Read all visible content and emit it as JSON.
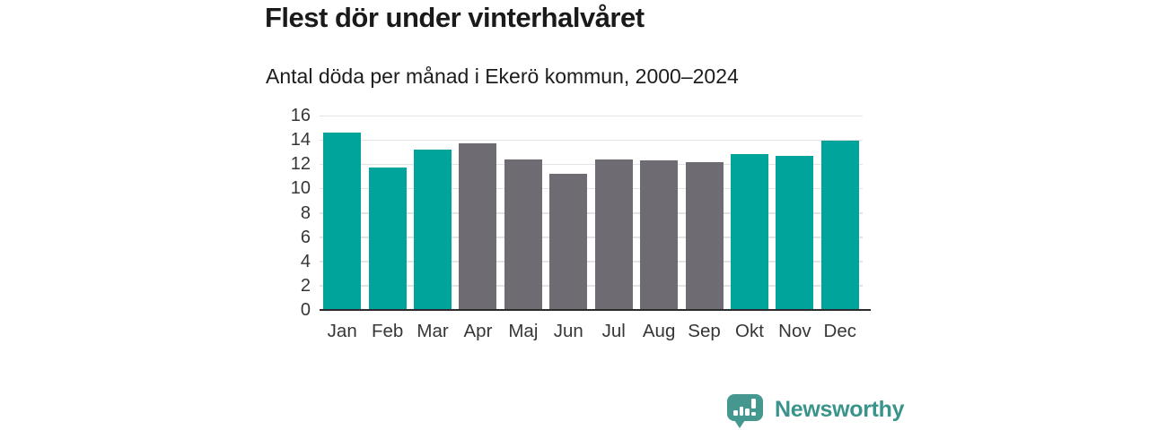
{
  "header": {
    "title": "Flest dör under vinterhalvåret",
    "subtitle": "Antal döda per månad i Ekerö kommun, 2000–2024"
  },
  "chart_data": {
    "type": "bar",
    "title": "Flest dör under vinterhalvåret",
    "subtitle": "Antal döda per månad i Ekerö kommun, 2000–2024",
    "categories": [
      "Jan",
      "Feb",
      "Mar",
      "Apr",
      "Maj",
      "Jun",
      "Jul",
      "Aug",
      "Sep",
      "Okt",
      "Nov",
      "Dec"
    ],
    "values": [
      14.6,
      11.7,
      13.2,
      13.7,
      12.4,
      11.2,
      12.4,
      12.3,
      12.2,
      12.8,
      12.7,
      13.9
    ],
    "bar_colors": [
      "teal",
      "teal",
      "teal",
      "gray",
      "gray",
      "gray",
      "gray",
      "gray",
      "gray",
      "teal",
      "teal",
      "teal"
    ],
    "xlabel": "",
    "ylabel": "",
    "ylim": [
      0,
      16
    ],
    "yticks": [
      0,
      2,
      4,
      6,
      8,
      10,
      12,
      14,
      16
    ],
    "grid": "horizontal-only",
    "legend": "none",
    "colors": {
      "teal": "#00a49b",
      "gray": "#6e6b72",
      "gridline": "#e3e3e3",
      "axis_line": "#2b2b2b",
      "tick_label": "#363636"
    }
  },
  "footer": {
    "brand": "Newsworthy",
    "brand_color": "#3a948c",
    "logo_icon": "bar-chart-speech-bubble-icon",
    "logo_bg": "#45988f"
  }
}
